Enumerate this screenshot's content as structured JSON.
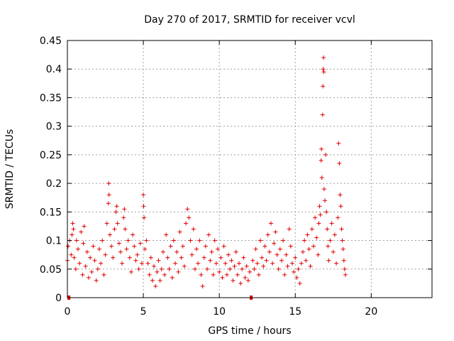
{
  "chart_data": {
    "type": "scatter",
    "title": "Day 270 of 2017, SRMTID for receiver vcvl",
    "xlabel": "GPS time / hours",
    "ylabel": "SRMTID / TECUs",
    "xlim": [
      0,
      24
    ],
    "ylim": [
      0,
      0.45
    ],
    "xticks": [
      0,
      5,
      10,
      15,
      20
    ],
    "xtick_labels": [
      "0",
      "5",
      "10",
      "15",
      "20"
    ],
    "yticks": [
      0,
      0.05,
      0.1,
      0.15,
      0.2,
      0.25,
      0.3,
      0.35,
      0.4,
      0.45
    ],
    "ytick_labels": [
      "0",
      "0.05",
      "0.1",
      "0.15",
      "0.2",
      "0.25",
      "0.3",
      "0.35",
      "0.4",
      "0.45"
    ],
    "grid": true,
    "marker": "+",
    "color": "#e00000",
    "series": [
      {
        "name": "SRMTID",
        "points": [
          [
            0.1,
            0.0
          ],
          [
            12.1,
            0.0
          ],
          [
            0.0,
            0.065
          ],
          [
            0.05,
            0.09
          ],
          [
            0.15,
            0.1
          ],
          [
            0.25,
            0.075
          ],
          [
            0.3,
            0.11
          ],
          [
            0.35,
            0.13
          ],
          [
            0.4,
            0.12
          ],
          [
            0.45,
            0.07
          ],
          [
            0.55,
            0.05
          ],
          [
            0.6,
            0.1
          ],
          [
            0.7,
            0.085
          ],
          [
            0.8,
            0.06
          ],
          [
            0.9,
            0.115
          ],
          [
            1.0,
            0.04
          ],
          [
            1.05,
            0.095
          ],
          [
            1.1,
            0.125
          ],
          [
            1.2,
            0.055
          ],
          [
            1.3,
            0.08
          ],
          [
            1.4,
            0.035
          ],
          [
            1.5,
            0.07
          ],
          [
            1.6,
            0.045
          ],
          [
            1.7,
            0.09
          ],
          [
            1.8,
            0.065
          ],
          [
            1.9,
            0.03
          ],
          [
            2.0,
            0.05
          ],
          [
            2.1,
            0.085
          ],
          [
            2.2,
            0.06
          ],
          [
            2.3,
            0.1
          ],
          [
            2.4,
            0.04
          ],
          [
            2.5,
            0.075
          ],
          [
            2.6,
            0.13
          ],
          [
            2.7,
            0.165
          ],
          [
            2.72,
            0.2
          ],
          [
            2.74,
            0.18
          ],
          [
            2.8,
            0.11
          ],
          [
            2.9,
            0.09
          ],
          [
            3.0,
            0.07
          ],
          [
            3.1,
            0.12
          ],
          [
            3.2,
            0.15
          ],
          [
            3.25,
            0.16
          ],
          [
            3.3,
            0.13
          ],
          [
            3.4,
            0.095
          ],
          [
            3.5,
            0.08
          ],
          [
            3.6,
            0.06
          ],
          [
            3.7,
            0.14
          ],
          [
            3.75,
            0.155
          ],
          [
            3.8,
            0.12
          ],
          [
            3.9,
            0.085
          ],
          [
            4.0,
            0.1
          ],
          [
            4.1,
            0.07
          ],
          [
            4.2,
            0.045
          ],
          [
            4.3,
            0.11
          ],
          [
            4.4,
            0.09
          ],
          [
            4.5,
            0.065
          ],
          [
            4.6,
            0.075
          ],
          [
            4.7,
            0.05
          ],
          [
            4.8,
            0.095
          ],
          [
            4.9,
            0.06
          ],
          [
            5.0,
            0.18
          ],
          [
            5.02,
            0.16
          ],
          [
            5.05,
            0.14
          ],
          [
            5.1,
            0.085
          ],
          [
            5.2,
            0.1
          ],
          [
            5.3,
            0.06
          ],
          [
            5.4,
            0.04
          ],
          [
            5.5,
            0.07
          ],
          [
            5.6,
            0.03
          ],
          [
            5.7,
            0.055
          ],
          [
            5.8,
            0.02
          ],
          [
            5.9,
            0.045
          ],
          [
            6.0,
            0.065
          ],
          [
            6.1,
            0.03
          ],
          [
            6.2,
            0.05
          ],
          [
            6.3,
            0.08
          ],
          [
            6.4,
            0.04
          ],
          [
            6.5,
            0.11
          ],
          [
            6.6,
            0.07
          ],
          [
            6.7,
            0.05
          ],
          [
            6.8,
            0.09
          ],
          [
            6.9,
            0.035
          ],
          [
            7.0,
            0.1
          ],
          [
            7.1,
            0.06
          ],
          [
            7.2,
            0.08
          ],
          [
            7.3,
            0.045
          ],
          [
            7.4,
            0.115
          ],
          [
            7.5,
            0.07
          ],
          [
            7.6,
            0.09
          ],
          [
            7.7,
            0.055
          ],
          [
            7.8,
            0.13
          ],
          [
            7.9,
            0.155
          ],
          [
            8.0,
            0.14
          ],
          [
            8.1,
            0.1
          ],
          [
            8.2,
            0.075
          ],
          [
            8.3,
            0.12
          ],
          [
            8.4,
            0.05
          ],
          [
            8.5,
            0.085
          ],
          [
            8.6,
            0.06
          ],
          [
            8.7,
            0.1
          ],
          [
            8.8,
            0.04
          ],
          [
            8.9,
            0.02
          ],
          [
            9.0,
            0.07
          ],
          [
            9.1,
            0.09
          ],
          [
            9.2,
            0.05
          ],
          [
            9.3,
            0.11
          ],
          [
            9.4,
            0.065
          ],
          [
            9.5,
            0.08
          ],
          [
            9.6,
            0.04
          ],
          [
            9.7,
            0.1
          ],
          [
            9.8,
            0.06
          ],
          [
            9.9,
            0.085
          ],
          [
            10.0,
            0.045
          ],
          [
            10.1,
            0.07
          ],
          [
            10.2,
            0.035
          ],
          [
            10.3,
            0.09
          ],
          [
            10.4,
            0.06
          ],
          [
            10.5,
            0.04
          ],
          [
            10.6,
            0.075
          ],
          [
            10.7,
            0.05
          ],
          [
            10.8,
            0.065
          ],
          [
            10.9,
            0.03
          ],
          [
            11.0,
            0.055
          ],
          [
            11.1,
            0.08
          ],
          [
            11.2,
            0.04
          ],
          [
            11.3,
            0.06
          ],
          [
            11.4,
            0.025
          ],
          [
            11.5,
            0.05
          ],
          [
            11.6,
            0.07
          ],
          [
            11.7,
            0.035
          ],
          [
            11.8,
            0.055
          ],
          [
            11.9,
            0.03
          ],
          [
            12.0,
            0.045
          ],
          [
            12.2,
            0.065
          ],
          [
            12.3,
            0.05
          ],
          [
            12.4,
            0.085
          ],
          [
            12.5,
            0.06
          ],
          [
            12.6,
            0.04
          ],
          [
            12.7,
            0.1
          ],
          [
            12.8,
            0.07
          ],
          [
            12.9,
            0.055
          ],
          [
            13.0,
            0.09
          ],
          [
            13.1,
            0.065
          ],
          [
            13.2,
            0.11
          ],
          [
            13.3,
            0.08
          ],
          [
            13.4,
            0.13
          ],
          [
            13.5,
            0.06
          ],
          [
            13.6,
            0.095
          ],
          [
            13.7,
            0.115
          ],
          [
            13.8,
            0.075
          ],
          [
            13.9,
            0.05
          ],
          [
            14.0,
            0.085
          ],
          [
            14.1,
            0.065
          ],
          [
            14.2,
            0.1
          ],
          [
            14.3,
            0.04
          ],
          [
            14.4,
            0.075
          ],
          [
            14.5,
            0.055
          ],
          [
            14.6,
            0.12
          ],
          [
            14.7,
            0.09
          ],
          [
            14.8,
            0.06
          ],
          [
            14.9,
            0.045
          ],
          [
            15.0,
            0.07
          ],
          [
            15.1,
            0.035
          ],
          [
            15.2,
            0.05
          ],
          [
            15.3,
            0.025
          ],
          [
            15.4,
            0.06
          ],
          [
            15.5,
            0.08
          ],
          [
            15.6,
            0.1
          ],
          [
            15.7,
            0.065
          ],
          [
            15.8,
            0.11
          ],
          [
            15.9,
            0.085
          ],
          [
            16.0,
            0.055
          ],
          [
            16.1,
            0.12
          ],
          [
            16.2,
            0.09
          ],
          [
            16.3,
            0.14
          ],
          [
            16.4,
            0.105
          ],
          [
            16.5,
            0.075
          ],
          [
            16.55,
            0.13
          ],
          [
            16.6,
            0.16
          ],
          [
            16.65,
            0.145
          ],
          [
            16.7,
            0.24
          ],
          [
            16.72,
            0.26
          ],
          [
            16.75,
            0.21
          ],
          [
            16.8,
            0.32
          ],
          [
            16.82,
            0.37
          ],
          [
            16.84,
            0.4
          ],
          [
            16.86,
            0.42
          ],
          [
            16.88,
            0.395
          ],
          [
            16.9,
            0.19
          ],
          [
            16.95,
            0.17
          ],
          [
            17.0,
            0.25
          ],
          [
            17.05,
            0.15
          ],
          [
            17.1,
            0.12
          ],
          [
            17.15,
            0.09
          ],
          [
            17.2,
            0.065
          ],
          [
            17.3,
            0.1
          ],
          [
            17.4,
            0.13
          ],
          [
            17.5,
            0.08
          ],
          [
            17.6,
            0.11
          ],
          [
            17.7,
            0.06
          ],
          [
            17.8,
            0.14
          ],
          [
            17.85,
            0.27
          ],
          [
            17.9,
            0.235
          ],
          [
            17.95,
            0.18
          ],
          [
            18.0,
            0.16
          ],
          [
            18.05,
            0.12
          ],
          [
            18.1,
            0.1
          ],
          [
            18.15,
            0.085
          ],
          [
            18.2,
            0.065
          ],
          [
            18.25,
            0.05
          ],
          [
            18.3,
            0.04
          ]
        ]
      }
    ]
  }
}
